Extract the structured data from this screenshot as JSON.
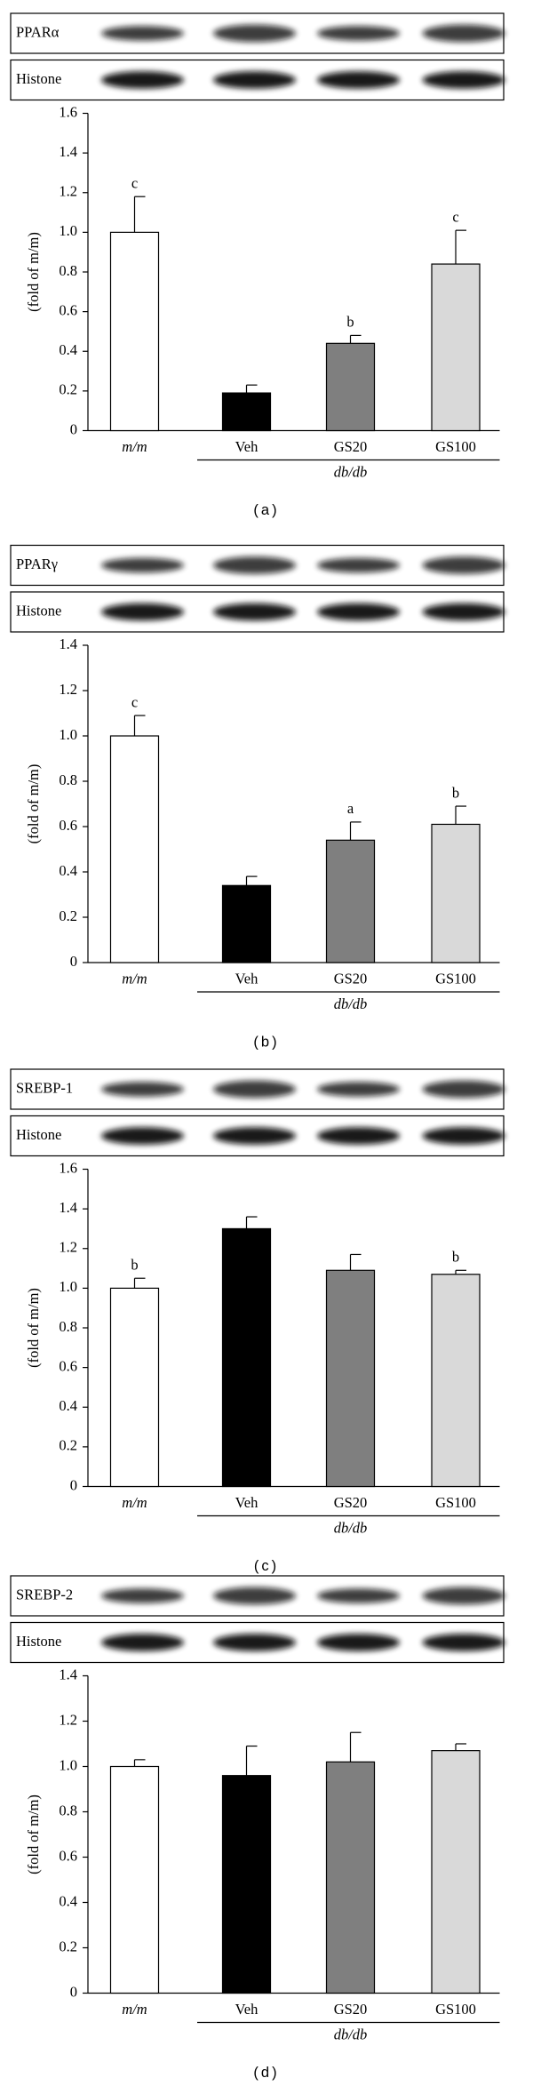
{
  "chart_data": [
    {
      "type": "bar",
      "panel_label": "(a)",
      "blot_labels": [
        "PPARα",
        "Histone"
      ],
      "y_label": "(fold of m/m)",
      "categories": [
        "m/m",
        "Veh",
        "GS20",
        "GS100"
      ],
      "group_label": "db/db",
      "values": [
        1.0,
        0.19,
        0.44,
        0.84
      ],
      "errors": [
        0.18,
        0.04,
        0.04,
        0.17
      ],
      "letters": [
        "c",
        null,
        "b",
        "c"
      ],
      "colors": [
        "#ffffff",
        "#000000",
        "#7f7f7f",
        "#d9d9d9"
      ],
      "ylim": [
        0,
        1.6
      ],
      "yticks": [
        0,
        0.2,
        0.4,
        0.6,
        0.8,
        {
          "value": 1,
          "label": "1.0"
        },
        1.2,
        1.4,
        1.6
      ]
    },
    {
      "type": "bar",
      "panel_label": "(b)",
      "blot_labels": [
        "PPARγ",
        "Histone"
      ],
      "y_label": "(fold of m/m)",
      "categories": [
        "m/m",
        "Veh",
        "GS20",
        "GS100"
      ],
      "group_label": "db/db",
      "values": [
        1.0,
        0.34,
        0.54,
        0.61
      ],
      "errors": [
        0.09,
        0.04,
        0.08,
        0.08
      ],
      "letters": [
        "c",
        null,
        "a",
        "b"
      ],
      "colors": [
        "#ffffff",
        "#000000",
        "#7f7f7f",
        "#d9d9d9"
      ],
      "ylim": [
        0,
        1.4
      ],
      "yticks": [
        0,
        0.2,
        0.4,
        0.6,
        0.8,
        {
          "value": 1,
          "label": "1.0"
        },
        1.2,
        1.4
      ]
    },
    {
      "type": "bar",
      "panel_label": "(c)",
      "blot_labels": [
        "SREBP-1",
        "Histone"
      ],
      "y_label": "(fold of m/m)",
      "categories": [
        "m/m",
        "Veh",
        "GS20",
        "GS100"
      ],
      "group_label": "db/db",
      "values": [
        1.0,
        1.3,
        1.09,
        1.07
      ],
      "errors": [
        0.05,
        0.06,
        0.08,
        0.02
      ],
      "letters": [
        "b",
        null,
        null,
        "b"
      ],
      "colors": [
        "#ffffff",
        "#000000",
        "#7f7f7f",
        "#d9d9d9"
      ],
      "ylim": [
        0,
        1.6
      ],
      "yticks": [
        0,
        0.2,
        0.4,
        0.6,
        0.8,
        {
          "value": 1,
          "label": "1.0"
        },
        1.2,
        1.4,
        1.6
      ]
    },
    {
      "type": "bar",
      "panel_label": "(d)",
      "blot_labels": [
        "SREBP-2",
        "Histone"
      ],
      "y_label": "(fold of m/m)",
      "categories": [
        "m/m",
        "Veh",
        "GS20",
        "GS100"
      ],
      "group_label": "db/db",
      "values": [
        1.0,
        0.96,
        1.02,
        1.07
      ],
      "errors": [
        0.03,
        0.13,
        0.13,
        0.03
      ],
      "colors": [
        "#ffffff",
        "#000000",
        "#7f7f7f",
        "#d9d9d9"
      ],
      "ylim": [
        0,
        1.4
      ],
      "yticks": [
        0,
        0.2,
        0.4,
        0.6,
        0.8,
        {
          "value": 1,
          "label": "1.0"
        },
        1.2,
        1.4
      ]
    }
  ]
}
